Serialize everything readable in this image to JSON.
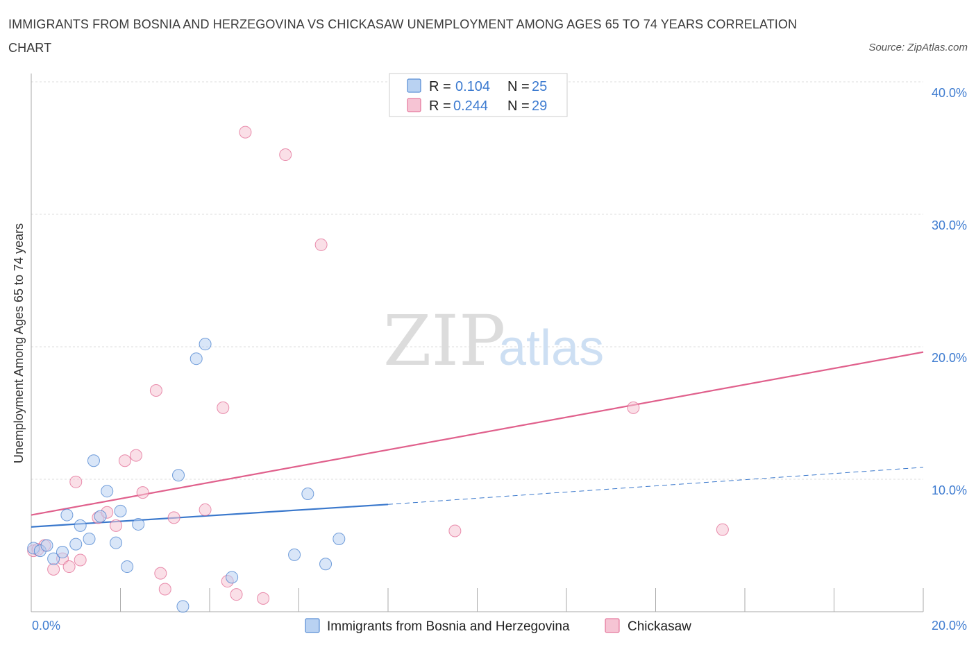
{
  "title": "IMMIGRANTS FROM BOSNIA AND HERZEGOVINA VS CHICKASAW UNEMPLOYMENT AMONG AGES 65 TO 74 YEARS CORRELATION CHART",
  "source": "Source: ZipAtlas.com",
  "watermark": {
    "zip": "ZIP",
    "atlas": "atlas"
  },
  "colors": {
    "blue": "#3a78cc",
    "blue_fill": "#b9d2f2",
    "pink": "#e0608c",
    "pink_fill": "#f6c4d4",
    "tick": "#3d7bd0"
  },
  "chart_data": {
    "type": "scatter",
    "title": "IMMIGRANTS FROM BOSNIA AND HERZEGOVINA VS CHICKASAW UNEMPLOYMENT AMONG AGES 65 TO 74 YEARS CORRELATION CHART",
    "xlabel": "",
    "ylabel": "Unemployment Among Ages 65 to 74 years",
    "xlim": [
      0,
      20
    ],
    "ylim": [
      0,
      40
    ],
    "x_tick_labels": [
      "0.0%",
      "20.0%"
    ],
    "y_tick_labels": [
      "10.0%",
      "20.0%",
      "30.0%",
      "40.0%"
    ],
    "y_ticks": [
      10,
      20,
      30,
      40
    ],
    "legend": [
      {
        "name": "Immigrants from Bosnia and Herzegovina",
        "r_label": "R =",
        "r": "0.104",
        "n_label": "N =",
        "n": "25"
      },
      {
        "name": "Chickasaw",
        "r_label": "R =",
        "r": "0.244",
        "n_label": "N =",
        "n": "29"
      }
    ],
    "series": [
      {
        "name": "Immigrants from Bosnia and Herzegovina",
        "points": [
          [
            0.05,
            4.8
          ],
          [
            0.2,
            4.6
          ],
          [
            0.35,
            5.0
          ],
          [
            0.5,
            4.0
          ],
          [
            0.7,
            4.5
          ],
          [
            0.8,
            7.3
          ],
          [
            1.0,
            5.1
          ],
          [
            1.1,
            6.5
          ],
          [
            1.3,
            5.5
          ],
          [
            1.4,
            11.4
          ],
          [
            1.55,
            7.2
          ],
          [
            1.7,
            9.1
          ],
          [
            1.9,
            5.2
          ],
          [
            2.0,
            7.6
          ],
          [
            2.15,
            3.4
          ],
          [
            2.4,
            6.6
          ],
          [
            3.3,
            10.3
          ],
          [
            3.4,
            0.4
          ],
          [
            3.7,
            19.1
          ],
          [
            3.9,
            20.2
          ],
          [
            4.5,
            2.6
          ],
          [
            5.9,
            4.3
          ],
          [
            6.2,
            8.9
          ],
          [
            6.6,
            3.6
          ],
          [
            6.9,
            5.5
          ]
        ],
        "trend": {
          "x0": 0,
          "y0": 6.4,
          "x1": 8.0,
          "y1": 8.1,
          "dash_x1": 20,
          "dash_y1": 10.9
        }
      },
      {
        "name": "Chickasaw",
        "points": [
          [
            0.05,
            4.6
          ],
          [
            0.3,
            5.0
          ],
          [
            0.5,
            3.2
          ],
          [
            0.7,
            4.0
          ],
          [
            0.85,
            3.4
          ],
          [
            1.0,
            9.8
          ],
          [
            1.1,
            3.9
          ],
          [
            1.5,
            7.1
          ],
          [
            1.7,
            7.5
          ],
          [
            1.9,
            6.5
          ],
          [
            2.1,
            11.4
          ],
          [
            2.35,
            11.8
          ],
          [
            2.5,
            9.0
          ],
          [
            2.8,
            16.7
          ],
          [
            2.9,
            2.9
          ],
          [
            3.0,
            1.7
          ],
          [
            3.2,
            7.1
          ],
          [
            3.9,
            7.7
          ],
          [
            4.3,
            15.4
          ],
          [
            4.4,
            2.3
          ],
          [
            4.6,
            1.3
          ],
          [
            4.8,
            36.2
          ],
          [
            5.2,
            1.0
          ],
          [
            5.7,
            34.5
          ],
          [
            6.5,
            27.7
          ],
          [
            9.5,
            6.1
          ],
          [
            13.5,
            15.4
          ],
          [
            15.5,
            6.2
          ],
          [
            0.15,
            4.7
          ]
        ],
        "trend": {
          "x0": 0,
          "y0": 7.3,
          "x1": 20,
          "y1": 19.6
        }
      }
    ]
  }
}
